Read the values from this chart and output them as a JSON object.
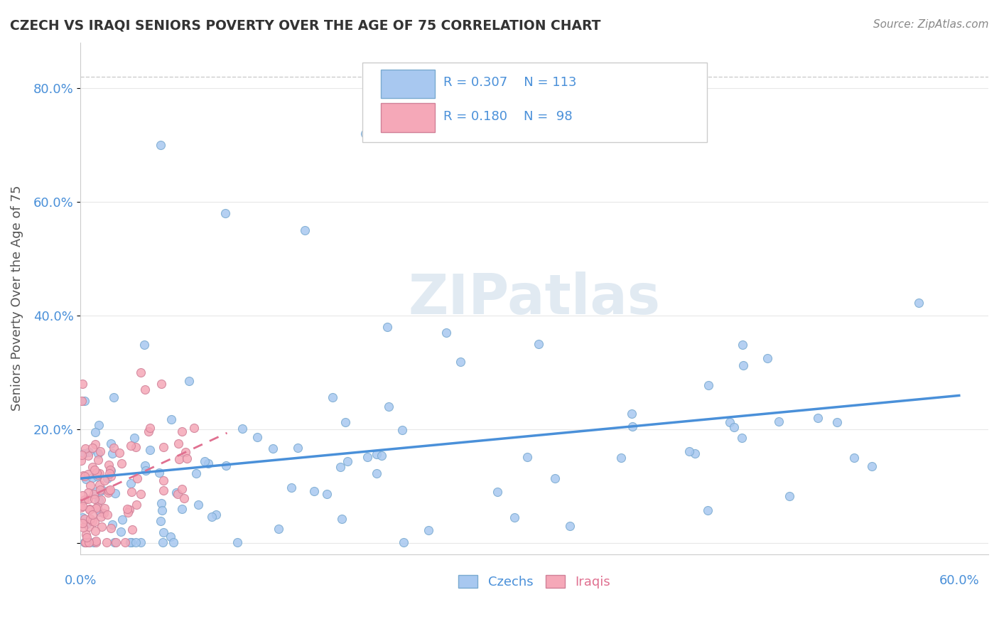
{
  "title": "CZECH VS IRAQI SENIORS POVERTY OVER THE AGE OF 75 CORRELATION CHART",
  "source": "Source: ZipAtlas.com",
  "ylabel": "Seniors Poverty Over the Age of 75",
  "xlim": [
    0.0,
    0.62
  ],
  "ylim": [
    -0.02,
    0.88
  ],
  "yticks": [
    0.0,
    0.2,
    0.4,
    0.6,
    0.8
  ],
  "ytick_labels": [
    "",
    "20.0%",
    "40.0%",
    "60.0%",
    "80.0%"
  ],
  "legend_r_czech": "R = 0.307",
  "legend_n_czech": "N = 113",
  "legend_r_iraqi": "R = 0.180",
  "legend_n_iraqi": "N = 98",
  "czech_color": "#a8c8f0",
  "iraqi_color": "#f5a8b8",
  "czech_edge_color": "#7aaad0",
  "iraqi_edge_color": "#d08098",
  "czech_line_color": "#4a90d9",
  "iraqi_line_color": "#e07090",
  "watermark": "ZIPatlas",
  "background_color": "#ffffff",
  "grid_color": "#e8e8e8",
  "title_color": "#333333",
  "source_color": "#888888",
  "tick_color": "#4a90d9",
  "ylabel_color": "#555555"
}
